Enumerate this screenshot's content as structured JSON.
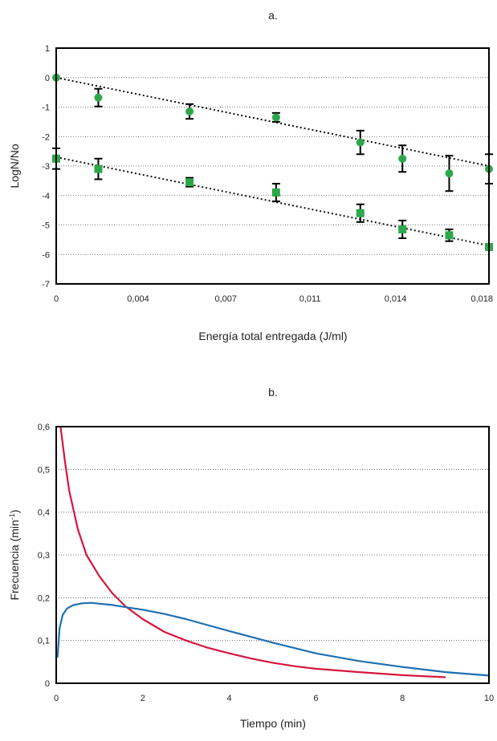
{
  "chart_data": [
    {
      "type": "scatter",
      "panel_label": "a.",
      "title": "",
      "xlabel": "Energía total entregada (J/ml)",
      "ylabel": "LogN/No",
      "xlim": [
        0,
        0.0185
      ],
      "ylim": [
        -7,
        1
      ],
      "grid": "horizontal dotted",
      "x_ticks": [
        {
          "value": 0,
          "label": "0"
        },
        {
          "value": 0.0035,
          "label": "0,004"
        },
        {
          "value": 0.00725,
          "label": "0,007"
        },
        {
          "value": 0.01085,
          "label": "0,011"
        },
        {
          "value": 0.0145,
          "label": "0,014"
        },
        {
          "value": 0.0182,
          "label": "0,018"
        }
      ],
      "y_ticks": [
        {
          "value": 1,
          "label": "1"
        },
        {
          "value": 0,
          "label": "0"
        },
        {
          "value": -1,
          "label": "-1"
        },
        {
          "value": -2,
          "label": "-2"
        },
        {
          "value": -3,
          "label": "-3"
        },
        {
          "value": -4,
          "label": "-4"
        },
        {
          "value": -5,
          "label": "-5"
        },
        {
          "value": -6,
          "label": "-6"
        },
        {
          "value": -7,
          "label": "-7"
        }
      ],
      "series": [
        {
          "marker": "circle",
          "color": "#2ca84a",
          "x": [
            0,
            0.0018,
            0.0057,
            0.0094,
            0.013,
            0.0148,
            0.0168,
            0.0185
          ],
          "y": [
            0,
            -0.68,
            -1.15,
            -1.35,
            -2.2,
            -2.75,
            -3.25,
            -3.1
          ],
          "err": [
            0,
            0.3,
            0.25,
            0.15,
            0.4,
            0.45,
            0.6,
            0.5
          ],
          "trend": {
            "x": [
              0,
              0.0185
            ],
            "y": [
              0,
              -3.0
            ]
          }
        },
        {
          "marker": "square",
          "color": "#2ca84a",
          "x": [
            0,
            0.0018,
            0.0057,
            0.0094,
            0.013,
            0.0148,
            0.0168,
            0.0185
          ],
          "y": [
            -2.75,
            -3.1,
            -3.55,
            -3.9,
            -4.6,
            -5.15,
            -5.35,
            -5.75
          ],
          "err": [
            0.35,
            0.35,
            0.15,
            0.3,
            0.3,
            0.3,
            0.2,
            0
          ],
          "trend": {
            "x": [
              0,
              0.0185
            ],
            "y": [
              -2.7,
              -5.7
            ]
          }
        }
      ]
    },
    {
      "type": "line",
      "panel_label": "b.",
      "title": "",
      "xlabel": "Tiempo (min)",
      "ylabel_main": "Frecuencia (min",
      "ylabel_sup": "-1",
      "ylabel_end": ")",
      "xlim": [
        0,
        10
      ],
      "ylim": [
        0,
        0.6
      ],
      "grid": "horizontal dotted",
      "x_ticks": [
        {
          "value": 0,
          "label": "0"
        },
        {
          "value": 2,
          "label": "2"
        },
        {
          "value": 4,
          "label": "4"
        },
        {
          "value": 6,
          "label": "6"
        },
        {
          "value": 8,
          "label": "8"
        },
        {
          "value": 10,
          "label": "10"
        }
      ],
      "y_ticks": [
        {
          "value": 0,
          "label": "0"
        },
        {
          "value": 0.1,
          "label": "0,1"
        },
        {
          "value": 0.2,
          "label": "0,2"
        },
        {
          "value": 0.3,
          "label": "0,3"
        },
        {
          "value": 0.4,
          "label": "0,4"
        },
        {
          "value": 0.5,
          "label": "0,5"
        },
        {
          "value": 0.6,
          "label": "0,6"
        }
      ],
      "series": [
        {
          "color": "#d6163d",
          "x": [
            0.1,
            0.2,
            0.3,
            0.5,
            0.7,
            1.0,
            1.3,
            1.6,
            2.0,
            2.5,
            3.0,
            3.5,
            4.0,
            4.5,
            5.0,
            5.5,
            6.0,
            7.0,
            8.0,
            9.0
          ],
          "y": [
            0.6,
            0.52,
            0.45,
            0.36,
            0.3,
            0.25,
            0.21,
            0.18,
            0.15,
            0.12,
            0.1,
            0.083,
            0.07,
            0.058,
            0.048,
            0.04,
            0.034,
            0.026,
            0.019,
            0.014
          ]
        },
        {
          "color": "#1f6fb2",
          "x": [
            0.03,
            0.08,
            0.15,
            0.25,
            0.4,
            0.6,
            0.8,
            1.0,
            1.3,
            1.6,
            2.0,
            2.5,
            3.0,
            3.5,
            4.0,
            5.0,
            6.0,
            7.0,
            8.0,
            9.0,
            10.0
          ],
          "y": [
            0.06,
            0.13,
            0.16,
            0.175,
            0.183,
            0.187,
            0.188,
            0.186,
            0.183,
            0.178,
            0.172,
            0.162,
            0.15,
            0.136,
            0.122,
            0.095,
            0.07,
            0.052,
            0.038,
            0.026,
            0.018
          ]
        }
      ]
    }
  ]
}
